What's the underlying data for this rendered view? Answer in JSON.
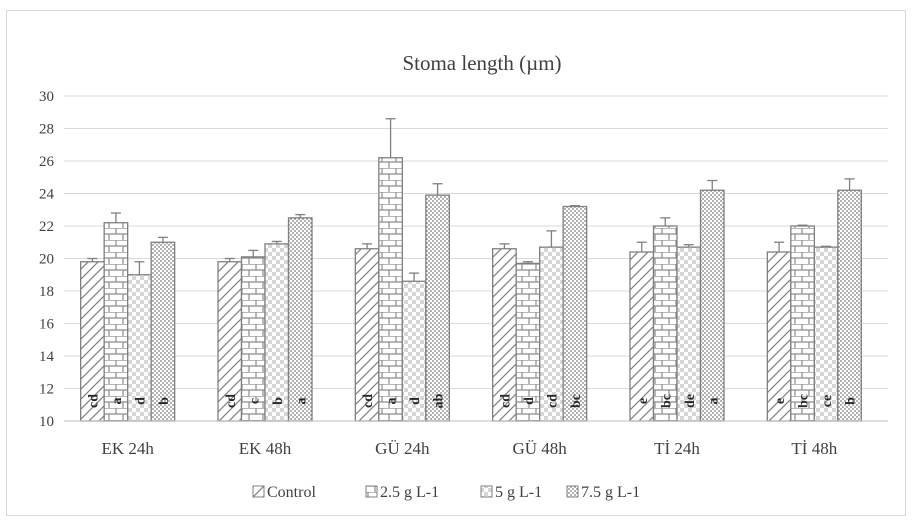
{
  "chart_data": {
    "type": "bar",
    "title": "Stoma length (µm)",
    "xlabel": "",
    "ylabel": "",
    "ylim": [
      10,
      30
    ],
    "yticks": [
      10,
      12,
      14,
      16,
      18,
      20,
      22,
      24,
      26,
      28,
      30
    ],
    "grid": true,
    "legend_position": "bottom",
    "categories": [
      "EK 24h",
      "EK 48h",
      "GÜ 24h",
      "GÜ 48h",
      "Tİ 24h",
      "Tİ 48h"
    ],
    "series": [
      {
        "name": "Control",
        "pattern": "diagonal",
        "values": [
          19.8,
          19.8,
          20.6,
          20.6,
          20.4,
          20.4
        ],
        "errors": [
          0.2,
          0.2,
          0.3,
          0.3,
          0.6,
          0.6
        ],
        "letters": [
          "cd",
          "cd",
          "cd",
          "cd",
          "e",
          "e"
        ]
      },
      {
        "name": "2.5 g L-1",
        "pattern": "brick",
        "values": [
          22.2,
          20.1,
          26.2,
          19.7,
          22.0,
          22.0
        ],
        "errors": [
          0.6,
          0.4,
          2.4,
          0.1,
          0.5,
          0.05
        ],
        "letters": [
          "a",
          "c",
          "a",
          "d",
          "bc",
          "bc"
        ]
      },
      {
        "name": "5 g L-1",
        "pattern": "light-check",
        "values": [
          19.0,
          20.9,
          18.6,
          20.7,
          20.7,
          20.7
        ],
        "errors": [
          0.8,
          0.15,
          0.5,
          1.0,
          0.15,
          0.05
        ],
        "letters": [
          "d",
          "b",
          "d",
          "cd",
          "de",
          "ce"
        ]
      },
      {
        "name": "7.5 g L-1",
        "pattern": "dots",
        "values": [
          21.0,
          22.5,
          23.9,
          23.2,
          24.2,
          24.2
        ],
        "errors": [
          0.3,
          0.2,
          0.7,
          0.05,
          0.6,
          0.7
        ],
        "letters": [
          "b",
          "a",
          "ab",
          "bc",
          "a",
          "b"
        ]
      }
    ]
  }
}
